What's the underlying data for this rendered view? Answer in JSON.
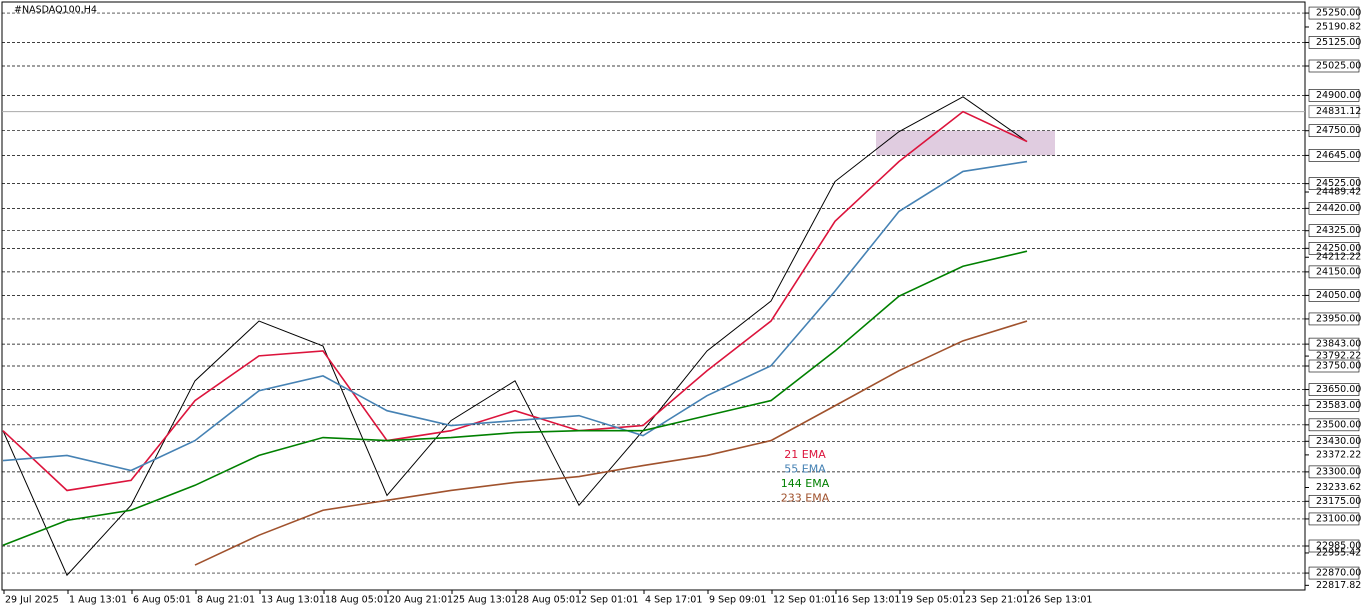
{
  "chart_data": {
    "type": "line",
    "title": "#NASDAQ100,H4",
    "categories": [
      "29 Jul 2025",
      "1 Aug 13:01",
      "6 Aug 05:01",
      "8 Aug 21:01",
      "13 Aug 13:01",
      "18 Aug 05:01",
      "20 Aug 21:01",
      "25 Aug 13:01",
      "28 Aug 05:01",
      "2 Sep 01:01",
      "4 Sep 17:01",
      "9 Sep 09:01",
      "12 Sep 01:01",
      "16 Sep 13:01",
      "19 Sep 05:01",
      "23 Sep 21:01",
      "26 Sep 13:01"
    ],
    "price_values": [
      23475,
      22861,
      23158,
      23687,
      23941,
      23835,
      23200,
      23518,
      23687,
      23158,
      23475,
      23814,
      24026,
      24534,
      24746,
      24894,
      24704
    ],
    "price_color": "#000000",
    "series": [
      {
        "name": "21 EMA",
        "color": "#dc143c",
        "values": [
          23475,
          23221,
          23264,
          23603,
          23793,
          23814,
          23433,
          23475,
          23560,
          23475,
          23497,
          23730,
          23941,
          24365,
          24619,
          24831,
          24704
        ]
      },
      {
        "name": "55 EMA",
        "color": "#4682b4",
        "values": [
          23348,
          23370,
          23306,
          23433,
          23645,
          23708,
          23560,
          23497,
          23518,
          23539,
          23454,
          23624,
          23751,
          24068,
          24407,
          24577,
          24619
        ]
      },
      {
        "name": "144 EMA",
        "color": "#008000",
        "values": [
          22988,
          23094,
          23137,
          23243,
          23370,
          23446,
          23433,
          23446,
          23467,
          23475,
          23475,
          23539,
          23603,
          23814,
          24047,
          24174,
          24238
        ]
      },
      {
        "name": "233 EMA",
        "color": "#a0522d",
        "values": [
          null,
          null,
          null,
          22904,
          23031,
          23137,
          23179,
          23221,
          23255,
          23280,
          23327,
          23370,
          23433,
          23581,
          23730,
          23857,
          23941
        ]
      }
    ],
    "ylim": [
      22798,
      25297
    ],
    "yticks": [
      {
        "value": 25190.82,
        "label": "25190.82"
      },
      {
        "value": 24489.42,
        "label": "24489.42"
      },
      {
        "value": 24212.22,
        "label": "24212.22"
      },
      {
        "value": 23792.22,
        "label": "23792.22"
      },
      {
        "value": 23372.22,
        "label": "23372.22"
      },
      {
        "value": 23233.62,
        "label": "23233.62"
      },
      {
        "value": 22955.42,
        "label": "22955.42"
      },
      {
        "value": 22817.82,
        "label": "22817.82"
      }
    ],
    "levels": [
      {
        "value": 25250,
        "label": "25250.00"
      },
      {
        "value": 25125,
        "label": "25125.00"
      },
      {
        "value": 25025,
        "label": "25025.00"
      },
      {
        "value": 24900,
        "label": "24900.00"
      },
      {
        "value": 24750,
        "label": "24750.00"
      },
      {
        "value": 24645,
        "label": "24645.00"
      },
      {
        "value": 24525,
        "label": "24525.00"
      },
      {
        "value": 24420,
        "label": "24420.00"
      },
      {
        "value": 24325,
        "label": "24325.00"
      },
      {
        "value": 24250,
        "label": "24250.00"
      },
      {
        "value": 24150,
        "label": "24150.00"
      },
      {
        "value": 24050,
        "label": "24050.00"
      },
      {
        "value": 23950,
        "label": "23950.00"
      },
      {
        "value": 23843,
        "label": "23843.00"
      },
      {
        "value": 23750,
        "label": "23750.00"
      },
      {
        "value": 23650,
        "label": "23650.00"
      },
      {
        "value": 23583,
        "label": "23583.00"
      },
      {
        "value": 23500,
        "label": "23500.00"
      },
      {
        "value": 23430,
        "label": "23430.00"
      },
      {
        "value": 23300,
        "label": "23300.00"
      },
      {
        "value": 23175,
        "label": "23175.00"
      },
      {
        "value": 23100,
        "label": "23100.00"
      },
      {
        "value": 22985,
        "label": "22985.00"
      },
      {
        "value": 22870,
        "label": "22870.00"
      }
    ],
    "current_price": {
      "value": 24831.12,
      "label": "24831.12"
    },
    "zone": [
      24645,
      24750
    ],
    "zone_color": "#d8bfd8"
  }
}
